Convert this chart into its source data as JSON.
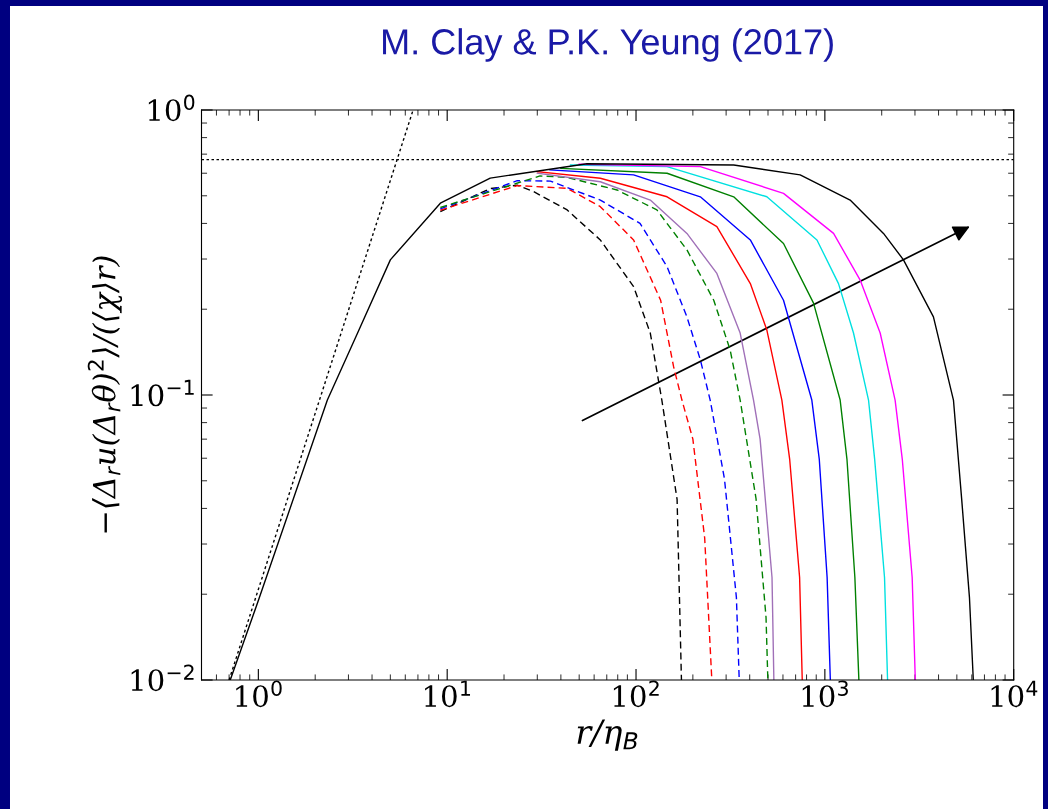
{
  "chart_data": {
    "type": "line",
    "title": "M. Clay & P.K. Yeung (2017)",
    "xlabel": "r/η$_{B}$",
    "ylabel": "−⟨Δ$_{r}$u(Δ$_{r}$θ)$^{2}$⟩/(⟨χ⟩r)",
    "log": "xy",
    "grid": false,
    "marker": "none",
    "xlim": [
      0.5,
      10000
    ],
    "ylim": [
      0.01,
      1
    ],
    "xticks": [
      {
        "value": 1,
        "label": "10$^{0}$"
      },
      {
        "value": 10,
        "label": "10$^{1}$"
      },
      {
        "value": 100,
        "label": "10$^{2}$"
      },
      {
        "value": 1000,
        "label": "10$^{3}$"
      },
      {
        "value": 10000,
        "label": "10$^{4}$"
      }
    ],
    "yticks": [
      {
        "value": 0.01,
        "label": "10$^{−2}$"
      },
      {
        "value": 0.1,
        "label": "10$^{−1}$"
      },
      {
        "value": 1,
        "label": "10$^{0}$"
      }
    ],
    "ref_lines": [
      {
        "axis": "y",
        "value": 0.67,
        "color": "#000000",
        "line_style": "dotted"
      }
    ],
    "series": [
      {
        "color": "#000000",
        "line_style": "dotted",
        "x": [
          0.7,
          6.6
        ],
        "values": [
          0.01,
          1.0
        ]
      },
      {
        "color": "#000000",
        "line_style": "dashed",
        "x": [
          9.2,
          16.9,
          23.5,
          28.7,
          43.2,
          64.7,
          97.1,
          119,
          137,
          165,
          174
        ],
        "values": [
          0.44,
          0.53,
          0.545,
          0.517,
          0.446,
          0.35,
          0.24,
          0.165,
          0.096,
          0.043,
          0.01
        ]
      },
      {
        "color": "#ff0000",
        "line_style": "dashed",
        "x": [
          9.2,
          23.5,
          43.2,
          64.7,
          97.1,
          135,
          158,
          175,
          200,
          231,
          252
        ],
        "values": [
          0.445,
          0.543,
          0.531,
          0.458,
          0.35,
          0.215,
          0.126,
          0.096,
          0.07,
          0.0315,
          0.01
        ]
      },
      {
        "color": "#0000ff",
        "line_style": "dashed",
        "x": [
          9.2,
          23.5,
          35.2,
          64.7,
          105,
          146,
          186,
          219,
          247,
          294,
          340,
          352
        ],
        "values": [
          0.45,
          0.565,
          0.563,
          0.483,
          0.4,
          0.282,
          0.188,
          0.133,
          0.096,
          0.0508,
          0.0195,
          0.01
        ]
      },
      {
        "color": "#008000",
        "line_style": "dashed",
        "x": [
          9.2,
          31,
          43.2,
          79.3,
          129,
          186,
          258,
          315,
          356,
          432,
          488,
          499
        ],
        "values": [
          0.455,
          0.587,
          0.58,
          0.524,
          0.446,
          0.323,
          0.215,
          0.144,
          0.096,
          0.0433,
          0.0166,
          0.01
        ]
      },
      {
        "color": "#a070b8",
        "line_style": "solid",
        "x": [
          30,
          64.7,
          119,
          186,
          268,
          356,
          419,
          454,
          525,
          537
        ],
        "values": [
          0.6,
          0.56,
          0.483,
          0.369,
          0.267,
          0.165,
          0.096,
          0.07,
          0.0229,
          0.01
        ]
      },
      {
        "color": "#ff0000",
        "line_style": "solid",
        "x": [
          30,
          64.7,
          146,
          268,
          403,
          493,
          592,
          651,
          735,
          759
        ],
        "values": [
          0.608,
          0.576,
          0.496,
          0.39,
          0.246,
          0.169,
          0.096,
          0.0596,
          0.0229,
          0.01
        ]
      },
      {
        "color": "#0000ff",
        "line_style": "solid",
        "x": [
          35,
          97.1,
          219,
          403,
          604,
          853,
          934,
          1028,
          1069
        ],
        "values": [
          0.616,
          0.592,
          0.496,
          0.35,
          0.215,
          0.096,
          0.0596,
          0.0229,
          0.01
        ]
      },
      {
        "color": "#008000",
        "line_style": "solid",
        "x": [
          40,
          146,
          329,
          604,
          871,
          1205,
          1309,
          1442,
          1514
        ],
        "values": [
          0.624,
          0.6,
          0.496,
          0.34,
          0.21,
          0.096,
          0.0596,
          0.0229,
          0.01
        ]
      },
      {
        "color": "#00e0e0",
        "line_style": "solid",
        "x": [
          45,
          146,
          493,
          908,
          1181,
          1418,
          1703,
          1835,
          2070,
          2148
        ],
        "values": [
          0.641,
          0.633,
          0.496,
          0.35,
          0.246,
          0.165,
          0.096,
          0.0596,
          0.0229,
          0.01
        ]
      },
      {
        "color": "#ff00ff",
        "line_style": "solid",
        "x": [
          50,
          219,
          604,
          1112,
          1538,
          1963,
          2355,
          2570,
          2900,
          3013
        ],
        "values": [
          0.645,
          0.633,
          0.51,
          0.369,
          0.253,
          0.165,
          0.096,
          0.0596,
          0.0229,
          0.01
        ]
      },
      {
        "color": "#000000",
        "line_style": "solid",
        "x": [
          0.71,
          1.0,
          2.32,
          3.34,
          5.0,
          9.2,
          16.9,
          55,
          329,
          740,
          1361,
          2044,
          2608,
          3758,
          4797,
          5300,
          5830,
          6110
        ],
        "values": [
          0.01,
          0.019,
          0.096,
          0.164,
          0.298,
          0.471,
          0.577,
          0.648,
          0.641,
          0.592,
          0.483,
          0.369,
          0.298,
          0.188,
          0.096,
          0.0433,
          0.0195,
          0.01
        ]
      }
    ]
  }
}
